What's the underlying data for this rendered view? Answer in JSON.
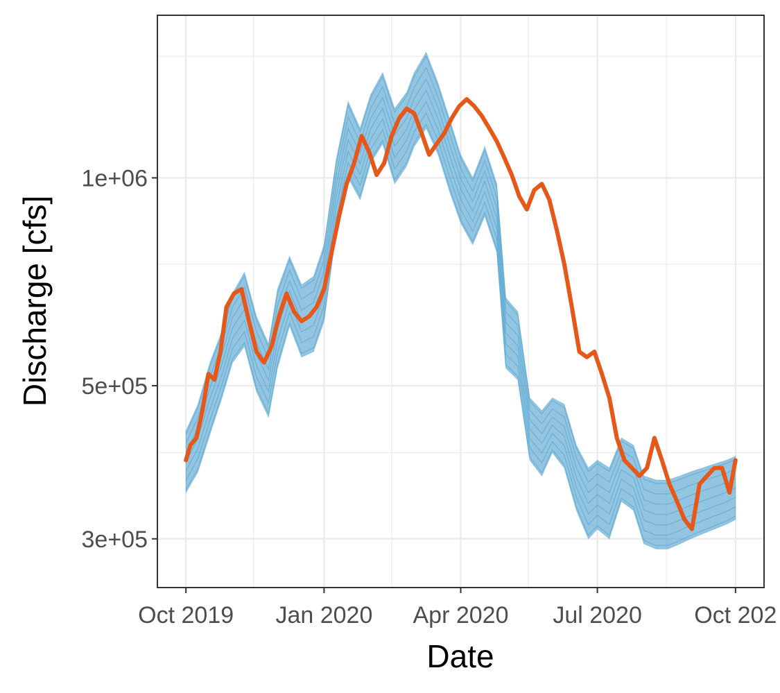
{
  "chart_data": {
    "type": "line",
    "title": "",
    "xlabel": "Date",
    "ylabel": "Discharge [cfs]",
    "y_scale": "log",
    "grid": true,
    "legend": "none",
    "x_tick_labels": [
      "Oct 2019",
      "Jan 2020",
      "Apr 2020",
      "Jul 2020",
      "Oct 202"
    ],
    "y_tick_labels": [
      "3e+05",
      "5e+05",
      "1e+06"
    ],
    "xlim": [
      "2019-09-12",
      "2020-10-20"
    ],
    "ylim": [
      255000,
      1720000
    ],
    "colors": {
      "ensemble": "#3b96c9",
      "median": "#e5581a"
    },
    "ensemble_band": {
      "name": "",
      "x": [
        "2019-10-01",
        "2019-10-09",
        "2019-10-17",
        "2019-10-25",
        "2019-11-01",
        "2019-11-09",
        "2019-11-17",
        "2019-11-25",
        "2019-12-01",
        "2019-12-09",
        "2019-12-17",
        "2019-12-25",
        "2020-01-01",
        "2020-01-09",
        "2020-01-17",
        "2020-01-25",
        "2020-02-01",
        "2020-02-09",
        "2020-02-17",
        "2020-02-25",
        "2020-03-01",
        "2020-03-09",
        "2020-03-17",
        "2020-03-25",
        "2020-04-01",
        "2020-04-09",
        "2020-04-17",
        "2020-04-25",
        "2020-05-01",
        "2020-05-09",
        "2020-05-17",
        "2020-05-25",
        "2020-06-01",
        "2020-06-09",
        "2020-06-17",
        "2020-06-25",
        "2020-07-01",
        "2020-07-09",
        "2020-07-17",
        "2020-07-25",
        "2020-08-01",
        "2020-08-09",
        "2020-08-17",
        "2020-08-25",
        "2020-09-01",
        "2020-09-09",
        "2020-09-17",
        "2020-09-25",
        "2020-10-01"
      ],
      "lower": [
        350000,
        375000,
        425000,
        480000,
        540000,
        570000,
        490000,
        450000,
        530000,
        610000,
        550000,
        560000,
        620000,
        830000,
        1000000,
        930000,
        1050000,
        1120000,
        980000,
        1040000,
        1110000,
        1180000,
        1080000,
        950000,
        860000,
        800000,
        880000,
        780000,
        530000,
        510000,
        390000,
        370000,
        400000,
        380000,
        330000,
        300000,
        310000,
        300000,
        340000,
        330000,
        295000,
        290000,
        290000,
        295000,
        300000,
        305000,
        310000,
        315000,
        320000
      ],
      "upper": [
        430000,
        470000,
        540000,
        600000,
        680000,
        730000,
        630000,
        575000,
        690000,
        770000,
        700000,
        720000,
        800000,
        1060000,
        1290000,
        1180000,
        1320000,
        1420000,
        1260000,
        1330000,
        1420000,
        1520000,
        1370000,
        1210000,
        1080000,
        1000000,
        1110000,
        980000,
        670000,
        640000,
        480000,
        460000,
        480000,
        470000,
        410000,
        380000,
        390000,
        380000,
        420000,
        410000,
        370000,
        365000,
        365000,
        370000,
        375000,
        380000,
        385000,
        390000,
        395000
      ]
    },
    "series": [
      {
        "name": "",
        "x": [
          "2019-10-01",
          "2019-10-04",
          "2019-10-08",
          "2019-10-12",
          "2019-10-16",
          "2019-10-20",
          "2019-10-24",
          "2019-10-28",
          "2019-11-02",
          "2019-11-07",
          "2019-11-12",
          "2019-11-17",
          "2019-11-22",
          "2019-11-27",
          "2019-12-02",
          "2019-12-07",
          "2019-12-12",
          "2019-12-17",
          "2019-12-22",
          "2019-12-27",
          "2020-01-01",
          "2020-01-06",
          "2020-01-11",
          "2020-01-16",
          "2020-01-21",
          "2020-01-26",
          "2020-01-31",
          "2020-02-05",
          "2020-02-10",
          "2020-02-15",
          "2020-02-20",
          "2020-02-25",
          "2020-03-01",
          "2020-03-06",
          "2020-03-11",
          "2020-03-16",
          "2020-03-21",
          "2020-03-26",
          "2020-03-31",
          "2020-04-05",
          "2020-04-10",
          "2020-04-15",
          "2020-04-20",
          "2020-04-25",
          "2020-04-30",
          "2020-05-05",
          "2020-05-10",
          "2020-05-15",
          "2020-05-20",
          "2020-05-25",
          "2020-05-30",
          "2020-06-04",
          "2020-06-09",
          "2020-06-14",
          "2020-06-19",
          "2020-06-24",
          "2020-06-29",
          "2020-07-04",
          "2020-07-09",
          "2020-07-14",
          "2020-07-19",
          "2020-07-24",
          "2020-07-29",
          "2020-08-03",
          "2020-08-08",
          "2020-08-13",
          "2020-08-18",
          "2020-08-23",
          "2020-08-28",
          "2020-09-02",
          "2020-09-07",
          "2020-09-12",
          "2020-09-17",
          "2020-09-22",
          "2020-09-27",
          "2020-10-01"
        ],
        "values": [
          390000,
          410000,
          420000,
          460000,
          520000,
          510000,
          560000,
          650000,
          680000,
          690000,
          620000,
          560000,
          540000,
          570000,
          630000,
          680000,
          640000,
          620000,
          630000,
          650000,
          690000,
          780000,
          880000,
          980000,
          1050000,
          1150000,
          1090000,
          1010000,
          1050000,
          1150000,
          1220000,
          1260000,
          1240000,
          1160000,
          1080000,
          1120000,
          1160000,
          1220000,
          1270000,
          1300000,
          1270000,
          1230000,
          1180000,
          1130000,
          1070000,
          1010000,
          940000,
          900000,
          960000,
          980000,
          930000,
          840000,
          750000,
          650000,
          560000,
          550000,
          560000,
          520000,
          480000,
          420000,
          390000,
          380000,
          370000,
          380000,
          420000,
          390000,
          360000,
          340000,
          320000,
          310000,
          360000,
          370000,
          380000,
          380000,
          350000,
          390000
        ]
      }
    ]
  }
}
